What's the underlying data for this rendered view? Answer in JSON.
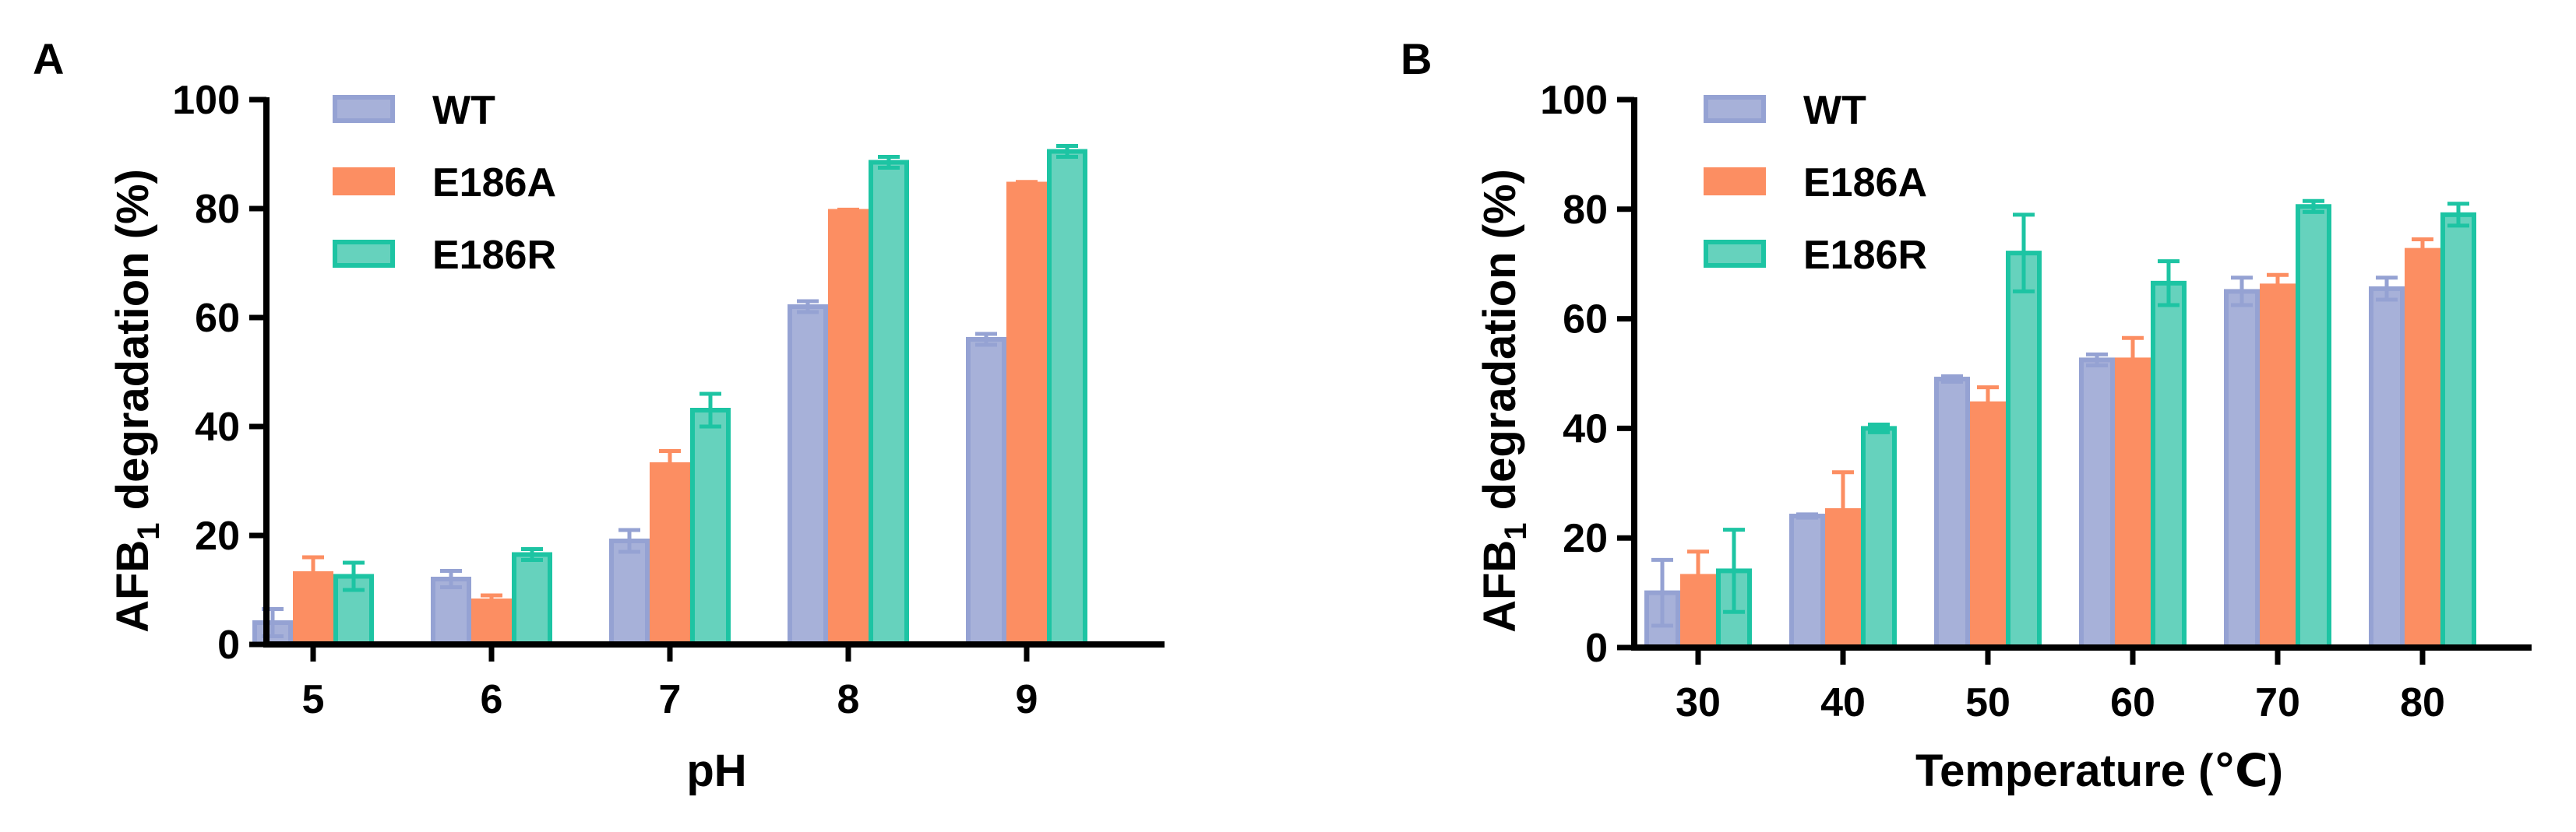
{
  "colors": {
    "WT": {
      "fill": "#a7b1d9",
      "stroke": "#95a2d3"
    },
    "E186A": {
      "fill": "#fc8e62",
      "stroke": "#fc8e62"
    },
    "E186R": {
      "fill": "#66d2bd",
      "stroke": "#1dc4a3"
    },
    "axis": "#000000"
  },
  "chart_data": [
    {
      "panel_label": "A",
      "type": "bar",
      "title": "",
      "xlabel": "pH",
      "ylabel_main": "AFB",
      "ylabel_sub": "1",
      "ylabel_rest": " degradation (%)",
      "ylim": [
        0,
        100
      ],
      "yticks": [
        "0",
        "20",
        "40",
        "60",
        "80",
        "100"
      ],
      "categories": [
        "5",
        "6",
        "7",
        "8",
        "9"
      ],
      "legend_position": "top-left",
      "series": [
        {
          "name": "WT",
          "values": [
            4,
            12,
            19,
            62,
            56
          ],
          "errors": [
            2.5,
            1.5,
            2,
            1,
            1
          ]
        },
        {
          "name": "E186A",
          "values": [
            13,
            8,
            33,
            79.5,
            84.5
          ],
          "errors": [
            3,
            1,
            2.5,
            0.3,
            0.4
          ]
        },
        {
          "name": "E186R",
          "values": [
            12.5,
            16.5,
            43,
            88.5,
            90.5
          ],
          "errors": [
            2.5,
            1,
            3,
            1,
            1
          ]
        }
      ]
    },
    {
      "panel_label": "B",
      "type": "bar",
      "title": "",
      "xlabel": "Temperature (℃)",
      "ylabel_main": "AFB",
      "ylabel_sub": "1",
      "ylabel_rest": " degradation (%)",
      "ylim": [
        0,
        100
      ],
      "yticks": [
        "0",
        "20",
        "40",
        "60",
        "80",
        "100"
      ],
      "categories": [
        "30",
        "40",
        "50",
        "60",
        "70",
        "80"
      ],
      "legend_position": "top-left",
      "series": [
        {
          "name": "WT",
          "values": [
            10,
            24,
            49,
            52.5,
            65,
            65.5
          ],
          "errors": [
            6,
            0.3,
            0.5,
            1,
            2.5,
            2
          ]
        },
        {
          "name": "E186A",
          "values": [
            13,
            25,
            44.5,
            52.5,
            66,
            72.5
          ],
          "errors": [
            4.5,
            7,
            3,
            4,
            2,
            2
          ]
        },
        {
          "name": "E186R",
          "values": [
            14,
            40,
            72,
            66.5,
            80.5,
            79
          ],
          "errors": [
            7.5,
            0.7,
            7,
            4,
            1,
            2
          ]
        }
      ]
    }
  ]
}
